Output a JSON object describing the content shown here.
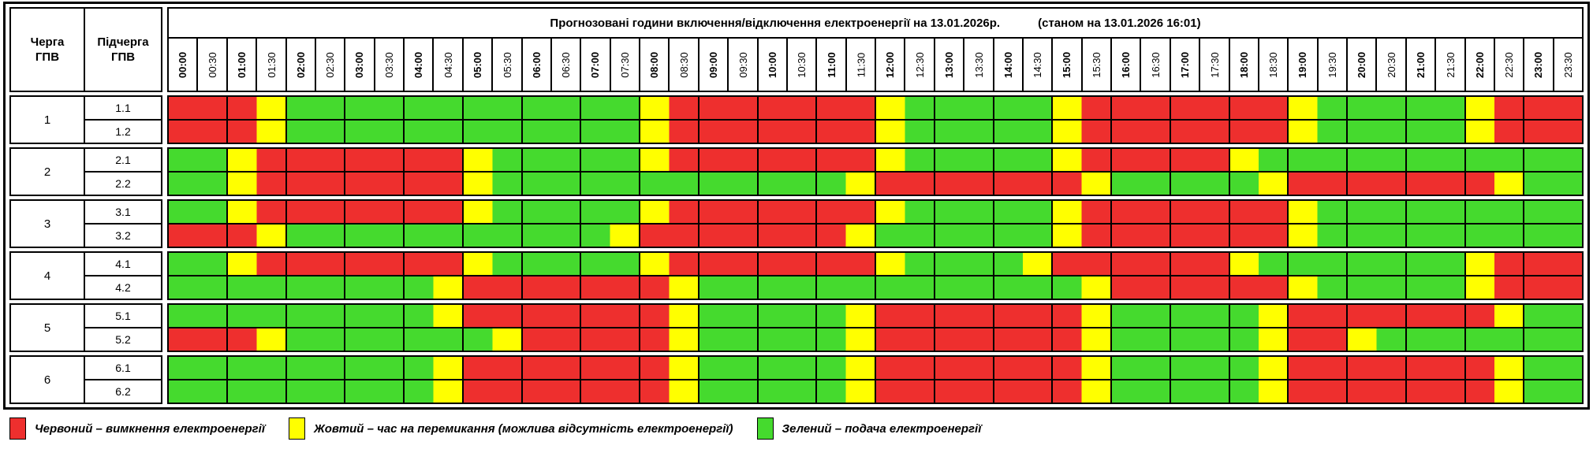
{
  "title": "Прогнозовані години включення/відключення електроенергії на 13.01.2026р.",
  "status": "(станом на 13.01.2026 16:01)",
  "corner": {
    "queue": "Черга\nГПВ",
    "subqueue": "Підчерга\nГПВ"
  },
  "time_labels": [
    "00:00",
    "00:30",
    "01:00",
    "01:30",
    "02:00",
    "02:30",
    "03:00",
    "03:30",
    "04:00",
    "04:30",
    "05:00",
    "05:30",
    "06:00",
    "06:30",
    "07:00",
    "07:30",
    "08:00",
    "08:30",
    "09:00",
    "09:30",
    "10:00",
    "10:30",
    "11:00",
    "11:30",
    "12:00",
    "12:30",
    "13:00",
    "13:30",
    "14:00",
    "14:30",
    "15:00",
    "15:30",
    "16:00",
    "16:30",
    "17:00",
    "17:30",
    "18:00",
    "18:30",
    "19:00",
    "19:30",
    "20:00",
    "20:30",
    "21:00",
    "21:30",
    "22:00",
    "22:30",
    "23:00",
    "23:30"
  ],
  "colors": {
    "R": "#ee2f2e",
    "Y": "#ffff00",
    "G": "#45da2e"
  },
  "slot_minutes": 30,
  "queues": [
    {
      "queue": "1",
      "rows": [
        {
          "label": "1.1",
          "slots": "RRRYGGGGGGGGGGGGYRRRRRRRYGGGGGYRRRRRRRYGGGGGYRRR"
        },
        {
          "label": "1.2",
          "slots": "RRRYGGGGGGGGGGGGYRRRRRRRYGGGGGYRRRRRRRYGGGGGYRRR"
        }
      ]
    },
    {
      "queue": "2",
      "rows": [
        {
          "label": "2.1",
          "slots": "GGYRRRRRRRYGGGGGYRRRRRRRYGGGGGYRRRRRYGGGGGGGGGGG"
        },
        {
          "label": "2.2",
          "slots": "GGYRRRRRRRYGGGGGGGGGGGGYRRRRRRRYGGGGGYRRRRRRRYGG"
        }
      ]
    },
    {
      "queue": "3",
      "rows": [
        {
          "label": "3.1",
          "slots": "GGYRRRRRRRYGGGGGYRRRRRRRYGGGGGYRRRRRRRYGGGGGGGGG"
        },
        {
          "label": "3.2",
          "slots": "RRRYGGGGGGGGGGGYRRRRRRRYGGGGGGYRRRRRRRYGGGGGGGGG"
        }
      ]
    },
    {
      "queue": "4",
      "rows": [
        {
          "label": "4.1",
          "slots": "GGYRRRRRRRYGGGGGYRRRRRRRYGGGGYRRRRRRYGGGGGGGYRRR"
        },
        {
          "label": "4.2",
          "slots": "GGGGGGGGGYRRRRRRRYGGGGGGGGGGGGGYRRRRRRYGGGGGYRRR"
        }
      ]
    },
    {
      "queue": "5",
      "rows": [
        {
          "label": "5.1",
          "slots": "GGGGGGGGGYRRRRRRRYGGGGGYRRRRRRRYGGGGGYRRRRRRRYGG"
        },
        {
          "label": "5.2",
          "slots": "RRRYGGGGGGGYRRRRRYGGGGGYRRRRRRRYGGGGGYRRYGGGGGGG"
        }
      ]
    },
    {
      "queue": "6",
      "rows": [
        {
          "label": "6.1",
          "slots": "GGGGGGGGGYRRRRRRRYGGGGGYRRRRRRRYGGGGGYRRRRRRRYGG"
        },
        {
          "label": "6.2",
          "slots": "GGGGGGGGGYRRRRRRRYGGGGGYRRRRRRRYGGGGGYRRRRRRRYGG"
        }
      ]
    }
  ],
  "legend": [
    {
      "key": "R",
      "color": "#ee2f2e",
      "label": "Червоний – вимкнення електроенергії"
    },
    {
      "key": "Y",
      "color": "#ffff00",
      "label": "Жовтий – час на перемикання (можлива відсутність електроенергії)"
    },
    {
      "key": "G",
      "color": "#45da2e",
      "label": "Зелений – подача електроенергії"
    }
  ]
}
